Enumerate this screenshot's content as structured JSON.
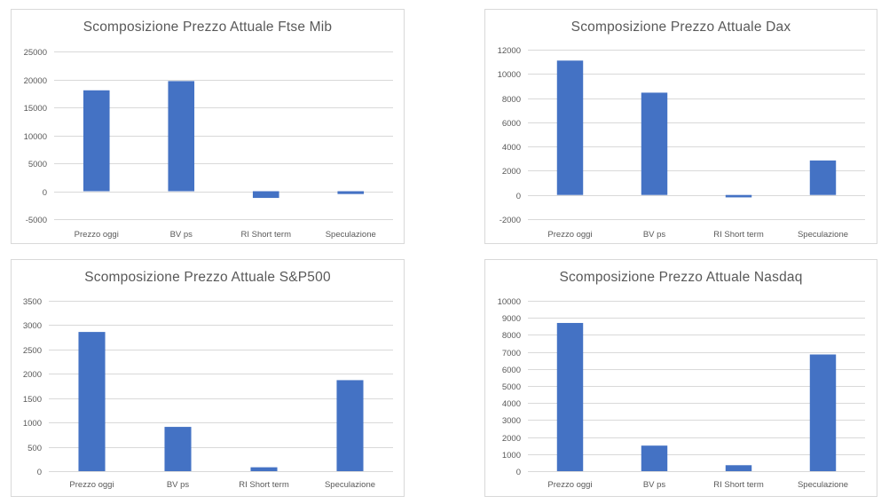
{
  "colors": {
    "bar": "#4472c4",
    "grid": "#d9d9d9",
    "text": "#595959"
  },
  "chart_data": [
    {
      "type": "bar",
      "title": "Scomposizione Prezzo Attuale Ftse Mib",
      "categories": [
        "Prezzo oggi",
        "BV ps",
        "RI Short term",
        "Speculazione"
      ],
      "values": [
        18050,
        19700,
        -1200,
        -500
      ],
      "ylim": [
        -5000,
        25000
      ],
      "yticks": [
        -5000,
        0,
        5000,
        10000,
        15000,
        20000,
        25000
      ],
      "xlabel": "",
      "ylabel": "",
      "grid": true,
      "legend": "none"
    },
    {
      "type": "bar",
      "title": "Scomposizione Prezzo Attuale Dax",
      "categories": [
        "Prezzo oggi",
        "BV ps",
        "RI Short term",
        "Speculazione"
      ],
      "values": [
        11100,
        8450,
        -200,
        2850
      ],
      "ylim": [
        -2000,
        12000
      ],
      "yticks": [
        -2000,
        0,
        2000,
        4000,
        6000,
        8000,
        10000,
        12000
      ],
      "xlabel": "",
      "ylabel": "",
      "grid": true,
      "legend": "none"
    },
    {
      "type": "bar",
      "title": "Scomposizione Prezzo Attuale S&P500",
      "categories": [
        "Prezzo oggi",
        "BV ps",
        "RI Short term",
        "Speculazione"
      ],
      "values": [
        2860,
        910,
        80,
        1870
      ],
      "ylim": [
        0,
        3500
      ],
      "yticks": [
        0,
        500,
        1000,
        1500,
        2000,
        2500,
        3000,
        3500
      ],
      "xlabel": "",
      "ylabel": "",
      "grid": true,
      "legend": "none"
    },
    {
      "type": "bar",
      "title": "Scomposizione Prezzo Attuale Nasdaq",
      "categories": [
        "Prezzo oggi",
        "BV ps",
        "RI Short term",
        "Speculazione"
      ],
      "values": [
        8700,
        1500,
        350,
        6850
      ],
      "ylim": [
        0,
        10000
      ],
      "yticks": [
        0,
        1000,
        2000,
        3000,
        4000,
        5000,
        6000,
        7000,
        8000,
        9000,
        10000
      ],
      "xlabel": "",
      "ylabel": "",
      "grid": true,
      "legend": "none"
    }
  ]
}
